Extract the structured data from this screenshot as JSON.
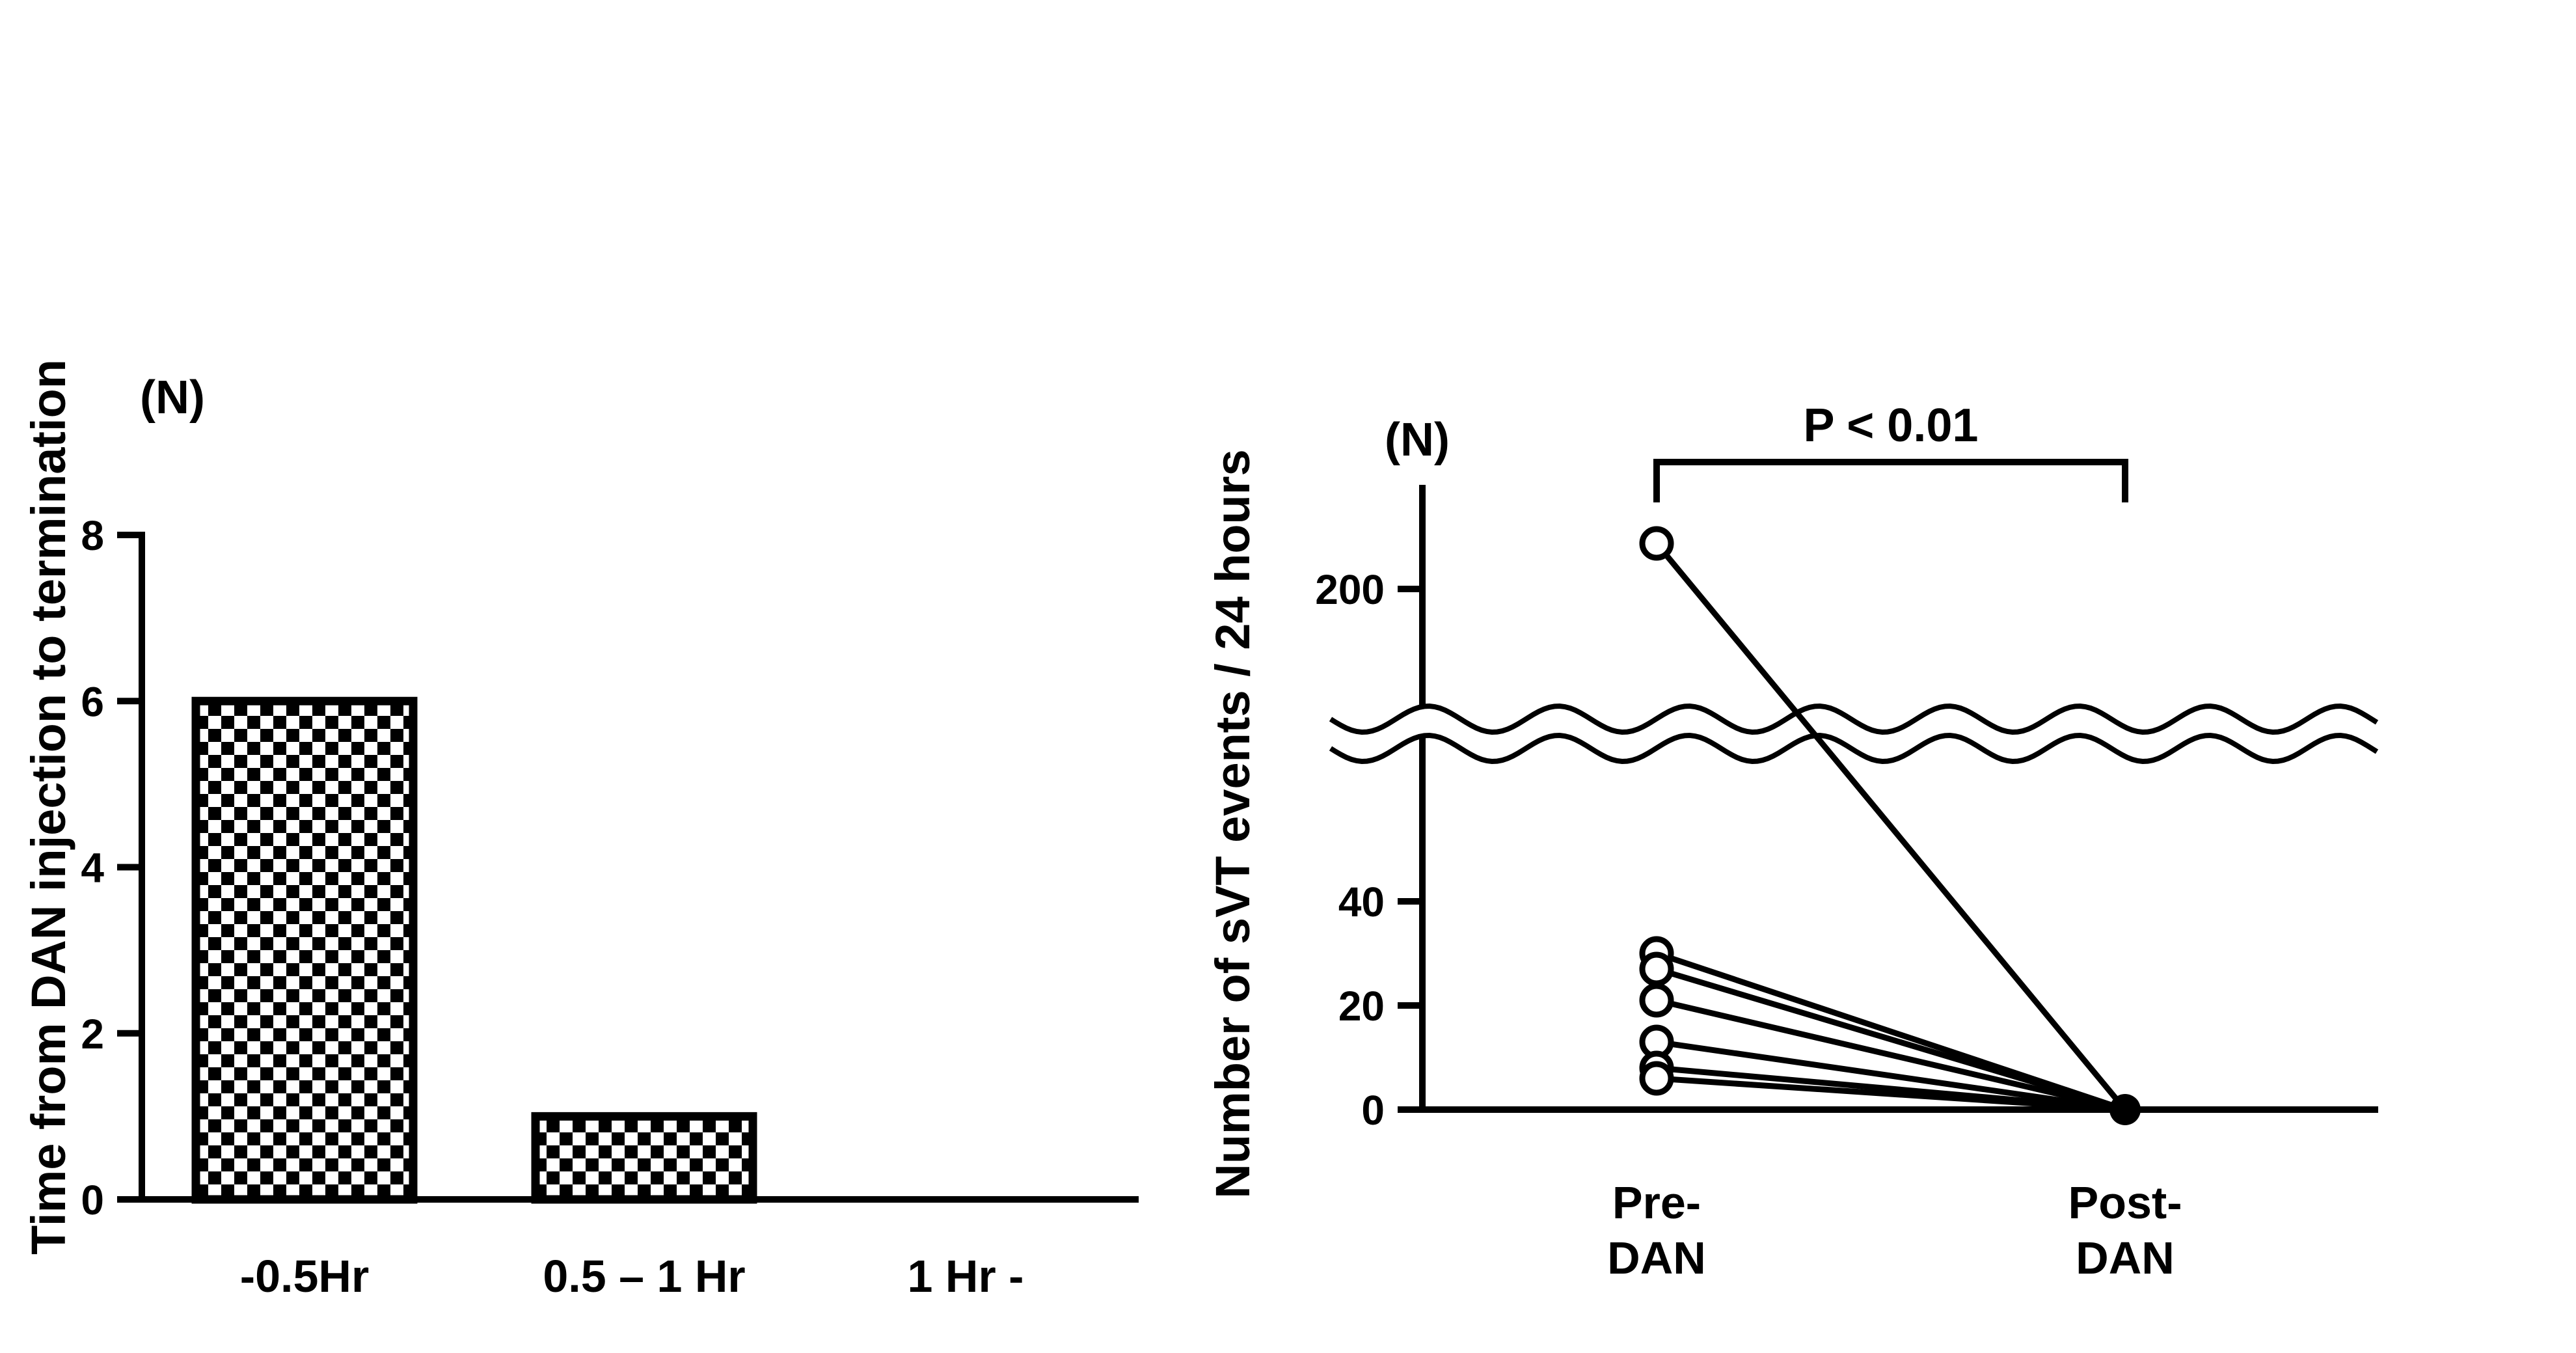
{
  "page": {
    "background": "#ffffff",
    "text_color": "#000000"
  },
  "chart_data": [
    {
      "type": "bar",
      "title": "",
      "ylabel": "Time from DAN injection to termination",
      "unit_label": "(N)",
      "xlabel": "",
      "categories": [
        "-0.5Hr",
        "0.5 – 1 Hr",
        "1 Hr -"
      ],
      "values": [
        6,
        1,
        0
      ],
      "yticks": [
        0,
        2,
        4,
        6,
        8
      ],
      "ylim": [
        0,
        8
      ],
      "grid": false,
      "bar_fill": "black-white checkerboard",
      "bar_outline": "#000000"
    },
    {
      "type": "paired-line",
      "title": "",
      "ylabel": "Number of sVT events / 24 hours",
      "unit_label": "(N)",
      "significance_label": "P < 0.01",
      "categories": [
        [
          "Pre-",
          "DAN"
        ],
        [
          "Post-",
          "DAN"
        ]
      ],
      "yticks": [
        0,
        20,
        40,
        200
      ],
      "ylim": [
        0,
        270
      ],
      "axis_break": {
        "between": [
          40,
          200
        ],
        "style": "double-wavy-line"
      },
      "series_pairs": [
        {
          "pre": 260,
          "post": 0
        },
        {
          "pre": 30,
          "post": 0
        },
        {
          "pre": 27,
          "post": 0
        },
        {
          "pre": 21,
          "post": 0
        },
        {
          "pre": 13,
          "post": 0
        },
        {
          "pre": 8,
          "post": 0
        },
        {
          "pre": 6,
          "post": 0
        }
      ],
      "marker_pre": "open-circle",
      "marker_post": "filled-circle",
      "grid": false,
      "legend": false
    }
  ]
}
